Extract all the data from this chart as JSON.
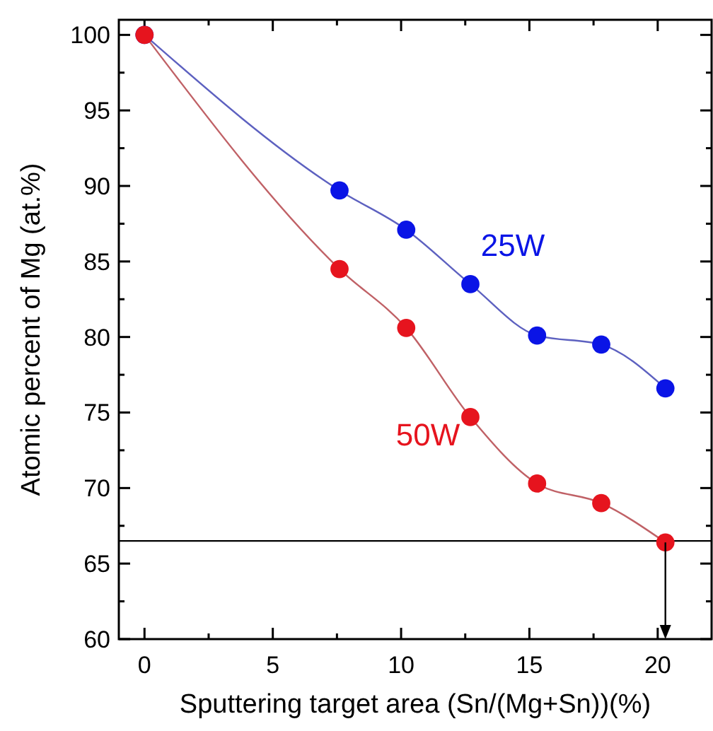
{
  "chart_data": {
    "type": "line",
    "xlabel": "Sputtering target area (Sn/(Mg+Sn))(%)",
    "ylabel": "Atomic percent of Mg (at.%)",
    "xlim": [
      -1,
      22.1
    ],
    "ylim": [
      60,
      101
    ],
    "xticks": [
      0,
      {
        "value": 2.5,
        "label": null
      },
      5,
      {
        "value": 7.5,
        "label": null
      },
      10,
      {
        "value": 12.5,
        "label": null
      },
      15,
      {
        "value": 17.5,
        "label": null
      },
      20
    ],
    "yticks": [
      60,
      {
        "value": 62.5,
        "label": null
      },
      65,
      {
        "value": 67.5,
        "label": null
      },
      70,
      {
        "value": 72.5,
        "label": null
      },
      75,
      {
        "value": 77.5,
        "label": null
      },
      80,
      {
        "value": 82.5,
        "label": null
      },
      85,
      {
        "value": 87.5,
        "label": null
      },
      90,
      {
        "value": 92.5,
        "label": null
      },
      95,
      {
        "value": 97.5,
        "label": null
      },
      100
    ],
    "x": [
      0,
      7.6,
      10.2,
      12.7,
      15.3,
      17.8,
      20.3
    ],
    "marker": "circle",
    "series": [
      {
        "name": "25W",
        "color": "#0a14e6",
        "values": [
          100,
          89.7,
          87.1,
          83.5,
          80.1,
          79.5,
          76.6
        ]
      },
      {
        "name": "50W",
        "color": "#e6141e",
        "values": [
          100,
          84.5,
          80.6,
          74.7,
          70.3,
          69.0,
          66.4
        ]
      }
    ],
    "ref_lines": [
      {
        "axis": "y",
        "value": 66.5,
        "color": "#000000"
      }
    ]
  }
}
